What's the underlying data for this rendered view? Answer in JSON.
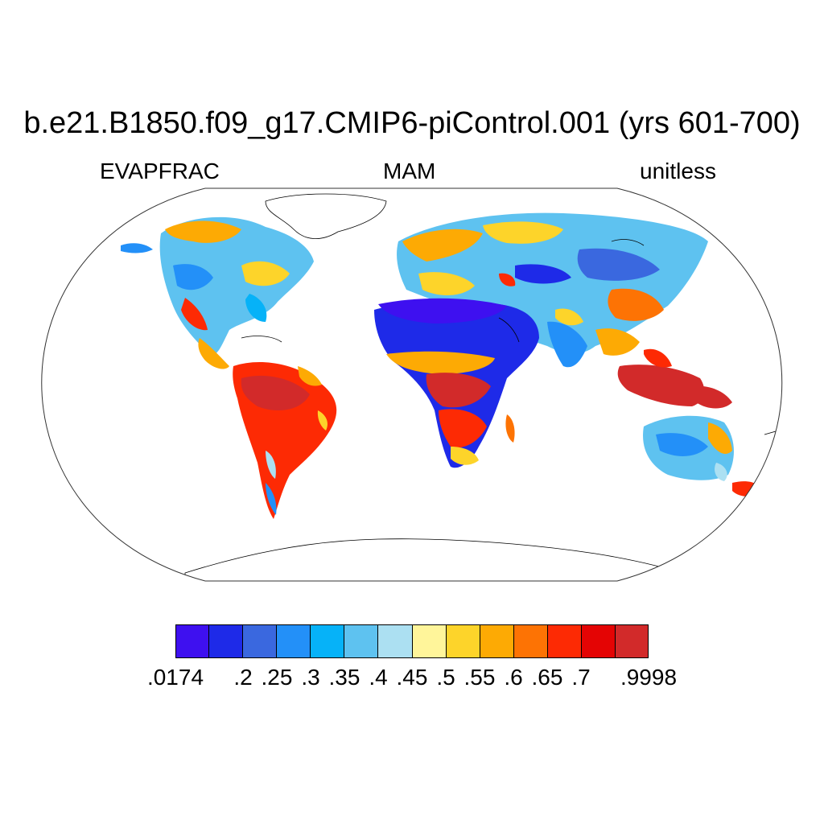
{
  "title": "b.e21.B1850.f09_g17.CMIP6-piControl.001 (yrs 601-700)",
  "left_label": "EVAPFRAC",
  "center_label": "MAM",
  "right_label": "unitless",
  "colorbar": {
    "colors": [
      "#3e10f0",
      "#1e2ae8",
      "#3a68df",
      "#2390f8",
      "#06b2f8",
      "#5ec2f0",
      "#ace0f2",
      "#fff59a",
      "#fdd42a",
      "#fdaa04",
      "#fd7304",
      "#fd2a04",
      "#e40404",
      "#d22a2a"
    ],
    "tick_labels": [
      ".0174",
      ".2",
      ".25",
      ".3",
      ".35",
      ".4",
      ".45",
      ".5",
      ".55",
      ".6",
      ".65",
      ".7",
      ".9998"
    ]
  }
}
